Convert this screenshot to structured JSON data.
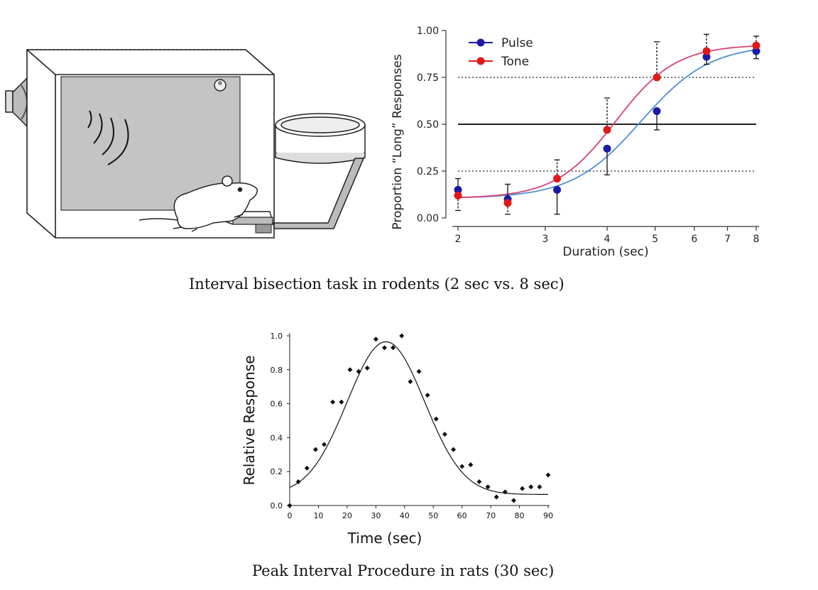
{
  "captions": {
    "top": "Interval bisection task in rodents (2 sec vs. 8 sec)",
    "bottom": "Peak Interval Procedure in rats (30 sec)"
  },
  "colors": {
    "pulse": "#1a1aa8",
    "tone": "#e01818",
    "pulse_fit": "#4a90d9",
    "tone_fit": "#d8407a"
  },
  "chart_data": [
    {
      "type": "scatter",
      "xlabel": "Duration (sec)",
      "ylabel": "Proportion “Long” Responses",
      "x_scale": "log",
      "xlim": [
        2,
        8
      ],
      "ylim": [
        0,
        1
      ],
      "x_ticks": [
        2,
        3,
        4,
        5,
        6,
        7,
        8
      ],
      "y_ticks": [
        0,
        0.25,
        0.5,
        0.75,
        1.0
      ],
      "y_tick_labels": [
        "0.00",
        "0.25",
        "0.50",
        "0.75",
        "1.00"
      ],
      "reference_lines": [
        {
          "y": 0.25,
          "style": "dotted"
        },
        {
          "y": 0.5,
          "style": "solid"
        },
        {
          "y": 0.75,
          "style": "dotted"
        }
      ],
      "legend_placement": "top-left",
      "series": [
        {
          "name": "Pulse",
          "x": [
            2,
            2.52,
            3.17,
            4,
            5.04,
            6.35,
            8
          ],
          "y": [
            0.15,
            0.1,
            0.15,
            0.37,
            0.57,
            0.86,
            0.89
          ],
          "err": [
            0.06,
            0.08,
            0.13,
            0.14,
            0.1,
            0.04,
            0.04
          ],
          "err_dir": [
            "up",
            "up",
            "down",
            "down",
            "down",
            "down",
            "down"
          ],
          "fit": true
        },
        {
          "name": "Tone",
          "x": [
            2,
            2.52,
            3.17,
            4,
            5.04,
            6.35,
            8
          ],
          "y": [
            0.12,
            0.08,
            0.21,
            0.47,
            0.75,
            0.89,
            0.92
          ],
          "err": [
            0.08,
            0.06,
            0.1,
            0.17,
            0.19,
            0.09,
            0.05
          ],
          "err_dir": [
            "down",
            "down",
            "up",
            "up",
            "up",
            "up",
            "up"
          ],
          "fit": true
        }
      ]
    },
    {
      "type": "scatter",
      "xlabel": "Time (sec)",
      "ylabel": "Relative Response",
      "xlim": [
        0,
        90
      ],
      "ylim": [
        0,
        1
      ],
      "x_ticks": [
        0,
        10,
        20,
        30,
        40,
        50,
        60,
        70,
        80,
        90
      ],
      "y_ticks": [
        0,
        0.2,
        0.4,
        0.6,
        0.8,
        1.0
      ],
      "y_tick_labels": [
        "0.0",
        "0.2",
        "0.4",
        "0.6",
        "0.8",
        "1.0"
      ],
      "x": [
        0,
        3,
        6,
        9,
        12,
        15,
        18,
        21,
        24,
        27,
        30,
        33,
        36,
        39,
        42,
        45,
        48,
        51,
        54,
        57,
        60,
        63,
        66,
        69,
        72,
        75,
        78,
        81,
        84,
        87,
        90
      ],
      "y": [
        0.0,
        0.14,
        0.22,
        0.33,
        0.36,
        0.61,
        0.61,
        0.8,
        0.79,
        0.81,
        0.98,
        0.93,
        0.93,
        1.0,
        0.73,
        0.79,
        0.65,
        0.51,
        0.42,
        0.33,
        0.23,
        0.24,
        0.14,
        0.11,
        0.05,
        0.08,
        0.03,
        0.1,
        0.11,
        0.11,
        0.18
      ],
      "fit": {
        "type": "gaussian",
        "amplitude": 0.9,
        "mean": 33.5,
        "sd": 13.5,
        "baseline": 0.065
      }
    }
  ]
}
